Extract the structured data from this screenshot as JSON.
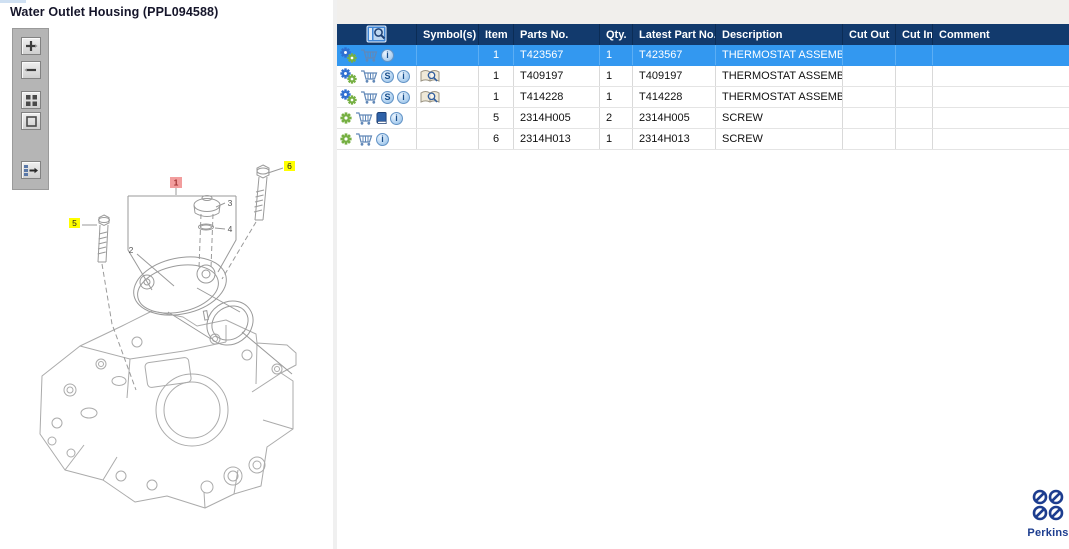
{
  "window": {
    "title": "Water Outlet Housing (PPL094588)"
  },
  "colors": {
    "header_bg": "#123a6d",
    "selected_row_bg": "#3398f0",
    "gear_blue": "#2f6fd0",
    "gear_green": "#76b043",
    "perkins_blue": "#1d3d8f",
    "callout_yellow": "#ffff00",
    "callout_red_bg": "#f29d9d",
    "callout_red_text": "#9e2f2f"
  },
  "toolbar": {
    "buttons": [
      {
        "icon": "zoom-in-icon"
      },
      {
        "icon": "zoom-out-icon"
      },
      {
        "icon": "tile-view-icon"
      },
      {
        "icon": "zoom-window-icon"
      },
      {
        "icon": "send-to-list-icon"
      }
    ]
  },
  "diagram": {
    "callouts": [
      {
        "label": "1",
        "style": "red"
      },
      {
        "label": "2",
        "style": "plain"
      },
      {
        "label": "3",
        "style": "plain"
      },
      {
        "label": "4",
        "style": "plain"
      },
      {
        "label": "5",
        "style": "yellow"
      },
      {
        "label": "6",
        "style": "yellow"
      }
    ]
  },
  "table": {
    "header_icon": "page-preview-icon",
    "columns": [
      "",
      "Symbol(s)",
      "Item",
      "Parts No.",
      "Qty.",
      "Latest Part No.",
      "Description",
      "Cut Out",
      "Cut In",
      "Comment"
    ],
    "rows": [
      {
        "selected": true,
        "actions": [
          "gears-icon",
          "cart-icon",
          "info-icon"
        ],
        "symbols": [],
        "item": "1",
        "parts_no": "T423567",
        "qty": "1",
        "latest_part_no": "T423567",
        "description": "THERMOSTAT ASSEMBLY",
        "cut_out": "",
        "cut_in": "",
        "comment": ""
      },
      {
        "selected": false,
        "actions": [
          "gears-icon",
          "cart-icon",
          "s-icon",
          "info-icon"
        ],
        "symbols": [
          "book-search-icon"
        ],
        "item": "1",
        "parts_no": "T409197",
        "qty": "1",
        "latest_part_no": "T409197",
        "description": "THERMOSTAT ASSEMBLY",
        "cut_out": "",
        "cut_in": "",
        "comment": ""
      },
      {
        "selected": false,
        "actions": [
          "gears-icon",
          "cart-icon",
          "s-icon",
          "info-icon"
        ],
        "symbols": [
          "book-search-icon"
        ],
        "item": "1",
        "parts_no": "T414228",
        "qty": "1",
        "latest_part_no": "T414228",
        "description": "THERMOSTAT ASSEMBLY",
        "cut_out": "",
        "cut_in": "",
        "comment": ""
      },
      {
        "selected": false,
        "actions": [
          "gear-icon",
          "cart-icon",
          "book-icon",
          "info-icon"
        ],
        "symbols": [],
        "item": "5",
        "parts_no": "2314H005",
        "qty": "2",
        "latest_part_no": "2314H005",
        "description": "SCREW",
        "cut_out": "",
        "cut_in": "",
        "comment": ""
      },
      {
        "selected": false,
        "actions": [
          "gear-icon",
          "cart-icon",
          "info-icon"
        ],
        "symbols": [],
        "item": "6",
        "parts_no": "2314H013",
        "qty": "1",
        "latest_part_no": "2314H013",
        "description": "SCREW",
        "cut_out": "",
        "cut_in": "",
        "comment": ""
      }
    ]
  },
  "logo": {
    "brand": "Perkins"
  }
}
